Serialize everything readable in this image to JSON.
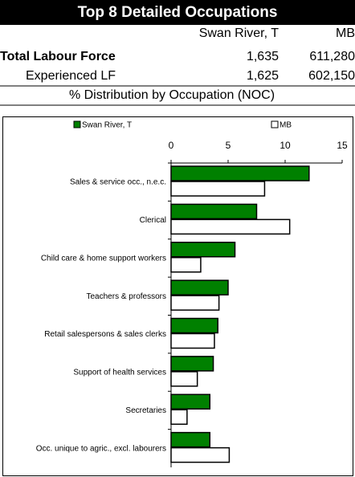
{
  "header": {
    "title": "Top 8 Detailed Occupations"
  },
  "table": {
    "columns": [
      "Swan River, T",
      "MB"
    ],
    "rows": [
      [
        "Total Labour Force",
        "1,635",
        "611,280"
      ],
      [
        "Experienced LF",
        "1,625",
        "602,150"
      ]
    ],
    "caption": "% Distribution by Occupation (NOC)"
  },
  "chart_data": {
    "type": "hbar",
    "categories": [
      "Sales & service occ., n.e.c.",
      "Clerical",
      "Child care & home support workers",
      "Teachers & professors",
      "Retail salespersons & sales clerks",
      "Support of health services",
      "Secretaries",
      "Occ. unique to agric., excl. labourers"
    ],
    "series": [
      {
        "name": "Swan River, T",
        "color": "#008000",
        "values": [
          12.1,
          7.5,
          5.6,
          5.0,
          4.1,
          3.7,
          3.4,
          3.4
        ]
      },
      {
        "name": "MB",
        "color": "#ffffff",
        "values": [
          8.2,
          10.4,
          2.6,
          4.2,
          3.8,
          2.3,
          1.4,
          5.1
        ]
      }
    ],
    "xlim": [
      0,
      15
    ],
    "xticks": [
      0,
      5,
      10,
      15
    ],
    "legend": "top"
  }
}
